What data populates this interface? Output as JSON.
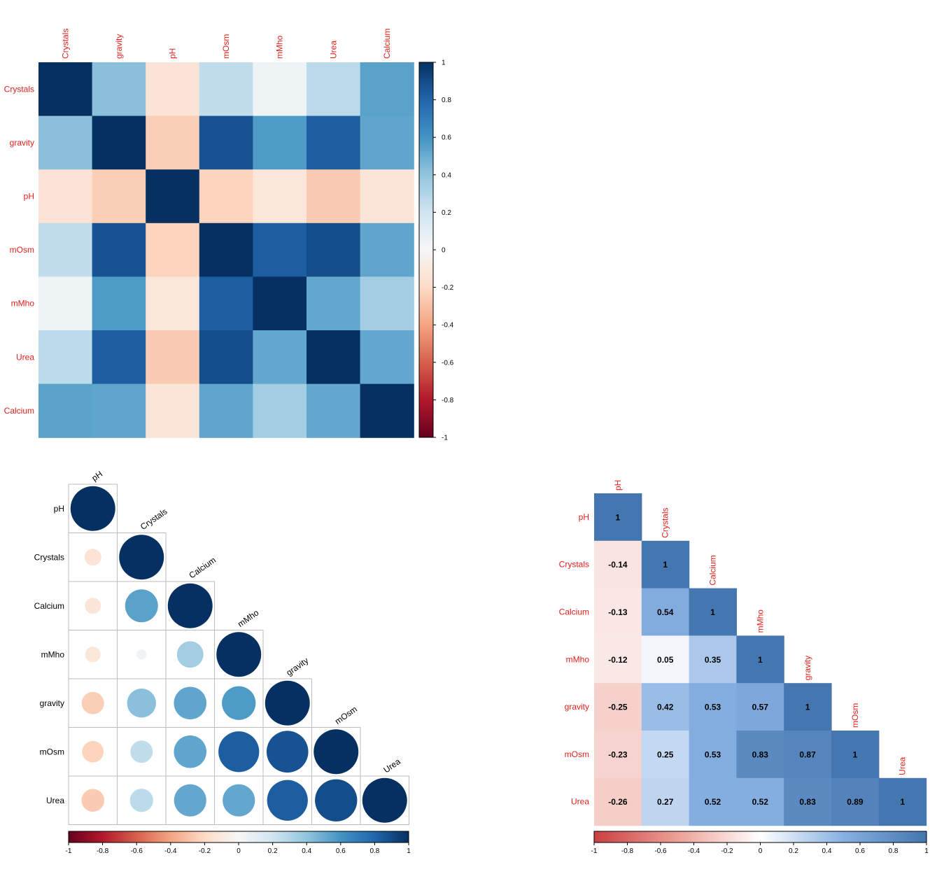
{
  "chart_data": [
    {
      "type": "heatmap",
      "variables": [
        "Crystals",
        "gravity",
        "pH",
        "mOsm",
        "mMho",
        "Urea",
        "Calcium"
      ],
      "matrix": [
        [
          1,
          0.42,
          -0.14,
          0.25,
          0.05,
          0.27,
          0.54
        ],
        [
          0.42,
          1,
          -0.25,
          0.87,
          0.57,
          0.83,
          0.53
        ],
        [
          -0.14,
          -0.25,
          1,
          -0.23,
          -0.12,
          -0.26,
          -0.13
        ],
        [
          0.25,
          0.87,
          -0.23,
          1,
          0.83,
          0.89,
          0.53
        ],
        [
          0.05,
          0.57,
          -0.12,
          0.83,
          1,
          0.52,
          0.35
        ],
        [
          0.27,
          0.83,
          -0.26,
          0.89,
          0.52,
          1,
          0.52
        ],
        [
          0.54,
          0.53,
          -0.13,
          0.53,
          0.35,
          0.52,
          1
        ]
      ],
      "color_range": [
        -1,
        1
      ],
      "colorbar": {
        "orientation": "vertical",
        "ticks": [
          "1",
          "0.8",
          "0.6",
          "0.4",
          "0.2",
          "0",
          "-0.2",
          "-0.4",
          "-0.6",
          "-0.8",
          "-1"
        ]
      },
      "label_color": "#e3201b"
    },
    {
      "type": "heatmap",
      "style": "circle",
      "triangle": "lower",
      "variables": [
        "pH",
        "Crystals",
        "Calcium",
        "mMho",
        "gravity",
        "mOsm",
        "Urea"
      ],
      "matrix": [
        [
          1
        ],
        [
          -0.14,
          1
        ],
        [
          -0.13,
          0.54,
          1
        ],
        [
          -0.12,
          0.05,
          0.35,
          1
        ],
        [
          -0.25,
          0.42,
          0.53,
          0.57,
          1
        ],
        [
          -0.23,
          0.25,
          0.53,
          0.83,
          0.87,
          1
        ],
        [
          -0.26,
          0.27,
          0.52,
          0.52,
          0.83,
          0.89,
          1
        ]
      ],
      "color_range": [
        -1,
        1
      ],
      "colorbar": {
        "orientation": "horizontal",
        "ticks": [
          "-1",
          "-0.8",
          "-0.6",
          "-0.4",
          "-0.2",
          "0",
          "0.2",
          "0.4",
          "0.6",
          "0.8",
          "1"
        ]
      },
      "label_color": "#000000"
    },
    {
      "type": "heatmap",
      "style": "number",
      "triangle": "lower",
      "variables": [
        "pH",
        "Crystals",
        "Calcium",
        "mMho",
        "gravity",
        "mOsm",
        "Urea"
      ],
      "matrix": [
        [
          1
        ],
        [
          -0.14,
          1
        ],
        [
          -0.13,
          0.54,
          1
        ],
        [
          -0.12,
          0.05,
          0.35,
          1
        ],
        [
          -0.25,
          0.42,
          0.53,
          0.57,
          1
        ],
        [
          -0.23,
          0.25,
          0.53,
          0.83,
          0.87,
          1
        ],
        [
          -0.26,
          0.27,
          0.52,
          0.52,
          0.83,
          0.89,
          1
        ]
      ],
      "cell_labels": [
        [
          "1"
        ],
        [
          "-0.14",
          "1"
        ],
        [
          "-0.13",
          "0.54",
          "1"
        ],
        [
          "-0.12",
          "0.05",
          "0.35",
          "1"
        ],
        [
          "-0.25",
          "0.42",
          "0.53",
          "0.57",
          "1"
        ],
        [
          "-0.23",
          "0.25",
          "0.53",
          "0.83",
          "0.87",
          "1"
        ],
        [
          "-0.26",
          "0.27",
          "0.52",
          "0.52",
          "0.83",
          "0.89",
          "1"
        ]
      ],
      "color_range": [
        -1,
        1
      ],
      "colorbar": {
        "orientation": "horizontal",
        "ticks": [
          "-1",
          "-0.8",
          "-0.6",
          "-0.4",
          "-0.2",
          "0",
          "0.2",
          "0.4",
          "0.6",
          "0.8",
          "1"
        ]
      },
      "label_color": "#e3201b"
    }
  ]
}
